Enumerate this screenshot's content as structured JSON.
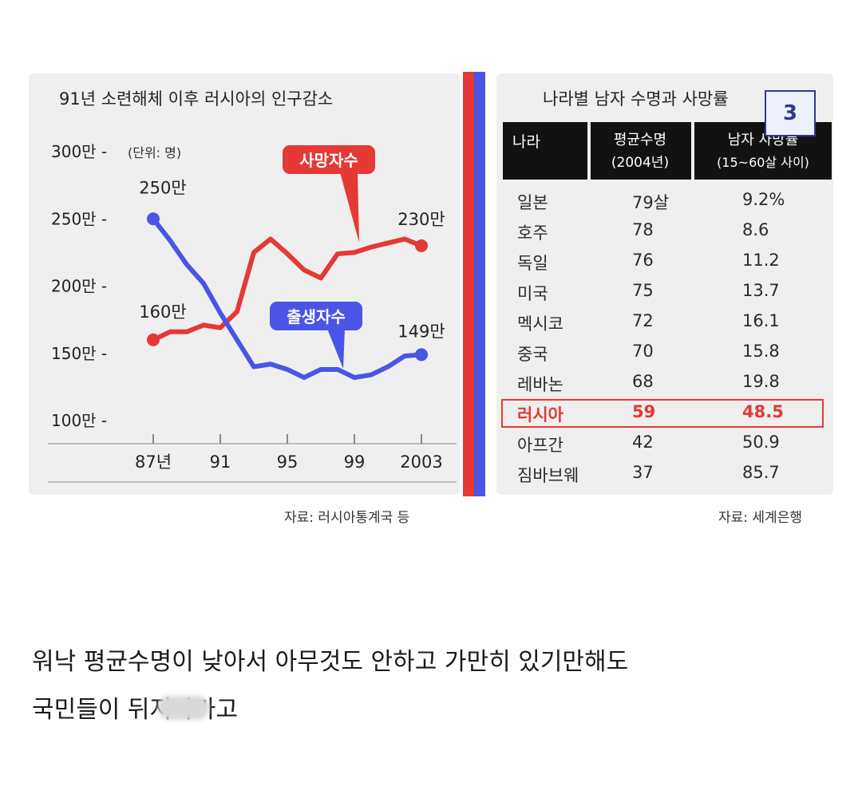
{
  "left": {
    "title": "91년 소련해체 이후 러시아의 인구감소",
    "unit": "(단위: 명)",
    "source": "자료: 러시아통계국 등"
  },
  "right": {
    "title": "나라별 남자 수명과 사망률",
    "headers": {
      "country": "나라",
      "life": "평균수명",
      "life_sub": "(2004년)",
      "death": "남자 사망률",
      "death_sub": "(15~60살 사이)"
    },
    "rows": [
      {
        "country": "일본",
        "life": "79살",
        "death": "9.2%"
      },
      {
        "country": "호주",
        "life": "78",
        "death": "8.6"
      },
      {
        "country": "독일",
        "life": "76",
        "death": "11.2"
      },
      {
        "country": "미국",
        "life": "75",
        "death": "13.7"
      },
      {
        "country": "멕시코",
        "life": "72",
        "death": "16.1"
      },
      {
        "country": "중국",
        "life": "70",
        "death": "15.8"
      },
      {
        "country": "레바논",
        "life": "68",
        "death": "19.8"
      },
      {
        "country": "러시아",
        "life": "59",
        "death": "48.5"
      },
      {
        "country": "아프간",
        "life": "42",
        "death": "50.9"
      },
      {
        "country": "짐바브웨",
        "life": "37",
        "death": "85.7"
      }
    ],
    "highlight_country": "러시아",
    "source": "자료: 세계은행"
  },
  "badge": "3",
  "caption": {
    "line1": "워낙 평균수명이 낮아서 아무것도 안하고 가만히 있기만해도",
    "line2": "국민들이 뒤져나가고"
  },
  "colors": {
    "deaths": "#e53935",
    "births": "#4a55e6"
  },
  "chart_data": {
    "type": "line",
    "title": "91년 소련해체 이후 러시아의 인구감소",
    "unit": "(단위: 명)",
    "x": [
      1987,
      1988,
      1989,
      1990,
      1991,
      1992,
      1993,
      1994,
      1995,
      1996,
      1997,
      1998,
      1999,
      2000,
      2001,
      2002,
      2003
    ],
    "x_ticks": [
      {
        "value": 1987,
        "label": "87년"
      },
      {
        "value": 1991,
        "label": "91"
      },
      {
        "value": 1995,
        "label": "95"
      },
      {
        "value": 1999,
        "label": "99"
      },
      {
        "value": 2003,
        "label": "2003"
      }
    ],
    "y_ticks": [
      {
        "value": 100,
        "label": "100만 -"
      },
      {
        "value": 150,
        "label": "150만 -"
      },
      {
        "value": 200,
        "label": "200만 -"
      },
      {
        "value": 250,
        "label": "250만 -"
      },
      {
        "value": 300,
        "label": "300만 -"
      }
    ],
    "ylim": [
      100,
      300
    ],
    "xlim": [
      1987,
      2003
    ],
    "series": [
      {
        "name": "사망자수",
        "color": "#e53935",
        "values": [
          160,
          166,
          166,
          171,
          169,
          181,
          225,
          235,
          224,
          212,
          206,
          224,
          225,
          229,
          232,
          235,
          230
        ],
        "start_label": "160만",
        "end_label": "230만"
      },
      {
        "name": "출생자수",
        "color": "#4a55e6",
        "values": [
          250,
          234,
          216,
          202,
          180,
          160,
          140,
          142,
          138,
          132,
          138,
          138,
          132,
          134,
          140,
          148,
          149
        ],
        "start_label": "250만",
        "end_label": "149만"
      }
    ]
  }
}
